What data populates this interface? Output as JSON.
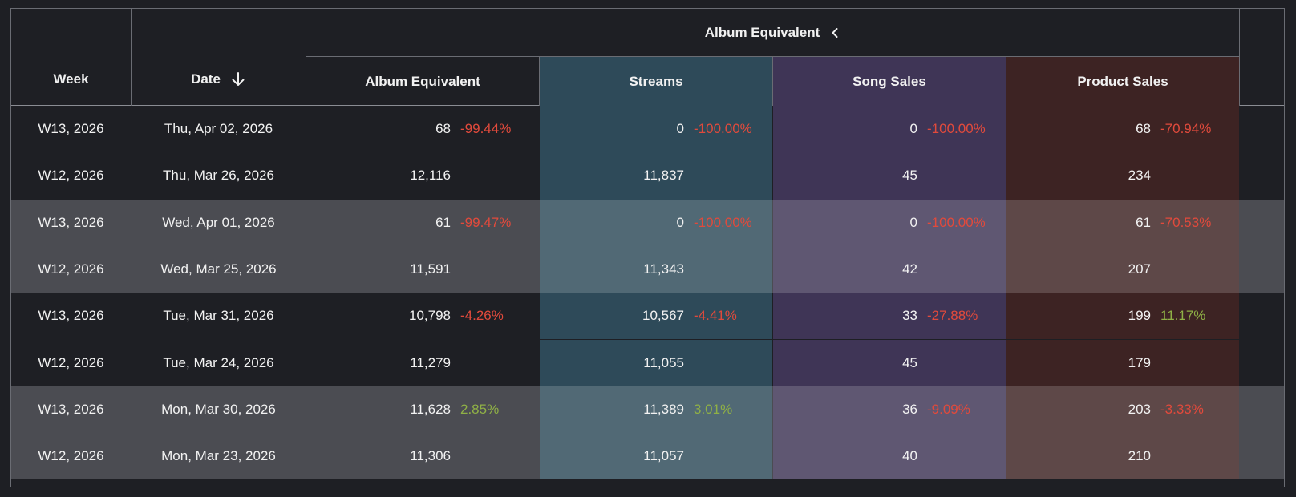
{
  "header": {
    "group_label": "Album Equivalent",
    "columns": {
      "week": "Week",
      "date": "Date",
      "album": "Album Equivalent",
      "streams": "Streams",
      "song": "Song Sales",
      "product": "Product Sales"
    }
  },
  "colors": {
    "streams_bg": "#2e4a59",
    "song_bg": "#3f3556",
    "product_bg": "#3d2323",
    "negative": "#e14a3c",
    "positive": "#8fb046"
  },
  "rows": [
    {
      "week": "W13, 2026",
      "date": "Thu, Apr 02, 2026",
      "album": "68",
      "album_pct": "-99.44%",
      "streams": "0",
      "streams_pct": "-100.00%",
      "song": "0",
      "song_pct": "-100.00%",
      "product": "68",
      "product_pct": "-70.94%",
      "shade": "dark"
    },
    {
      "week": "W12, 2026",
      "date": "Thu, Mar 26, 2026",
      "album": "12,116",
      "album_pct": "",
      "streams": "11,837",
      "streams_pct": "",
      "song": "45",
      "song_pct": "",
      "product": "234",
      "product_pct": "",
      "shade": "dark"
    },
    {
      "week": "W13, 2026",
      "date": "Wed, Apr 01, 2026",
      "album": "61",
      "album_pct": "-99.47%",
      "streams": "0",
      "streams_pct": "-100.00%",
      "song": "0",
      "song_pct": "-100.00%",
      "product": "61",
      "product_pct": "-70.53%",
      "shade": "light"
    },
    {
      "week": "W12, 2026",
      "date": "Wed, Mar 25, 2026",
      "album": "11,591",
      "album_pct": "",
      "streams": "11,343",
      "streams_pct": "",
      "song": "42",
      "song_pct": "",
      "product": "207",
      "product_pct": "",
      "shade": "light"
    },
    {
      "week": "W13, 2026",
      "date": "Tue, Mar 31, 2026",
      "album": "10,798",
      "album_pct": "-4.26%",
      "streams": "10,567",
      "streams_pct": "-4.41%",
      "song": "33",
      "song_pct": "-27.88%",
      "product": "199",
      "product_pct": "11.17%",
      "shade": "dark"
    },
    {
      "week": "W12, 2026",
      "date": "Tue, Mar 24, 2026",
      "album": "11,279",
      "album_pct": "",
      "streams": "11,055",
      "streams_pct": "",
      "song": "45",
      "song_pct": "",
      "product": "179",
      "product_pct": "",
      "shade": "dark"
    },
    {
      "week": "W13, 2026",
      "date": "Mon, Mar 30, 2026",
      "album": "11,628",
      "album_pct": "2.85%",
      "streams": "11,389",
      "streams_pct": "3.01%",
      "song": "36",
      "song_pct": "-9.09%",
      "product": "203",
      "product_pct": "-3.33%",
      "shade": "light"
    },
    {
      "week": "W12, 2026",
      "date": "Mon, Mar 23, 2026",
      "album": "11,306",
      "album_pct": "",
      "streams": "11,057",
      "streams_pct": "",
      "song": "40",
      "song_pct": "",
      "product": "210",
      "product_pct": "",
      "shade": "light"
    }
  ]
}
